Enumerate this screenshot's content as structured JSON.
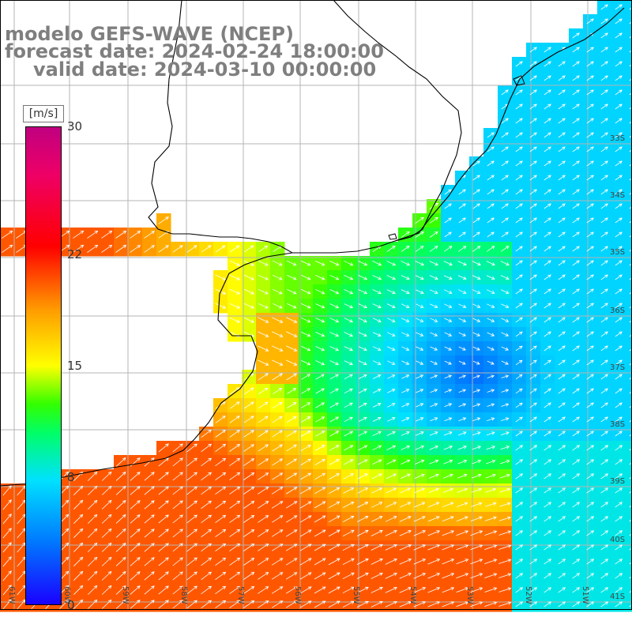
{
  "title": {
    "model": "modelo GEFS-WAVE (NCEP)",
    "forecast": "forecast date: 2024-02-24 18:00:00",
    "valid": "valid date: 2024-03-10 00:00:00"
  },
  "colorbar": {
    "unit": "[m/s]",
    "ticks": [
      "30",
      "22",
      "15",
      "8",
      "0"
    ],
    "tick_values": [
      30,
      22,
      15,
      8,
      0
    ],
    "range": [
      0,
      30
    ]
  },
  "map": {
    "lat_labels": [
      "33S",
      "34S",
      "35S",
      "36S",
      "37S",
      "38S",
      "39S",
      "40S",
      "41S"
    ],
    "lon_labels": [
      "61W",
      "60W",
      "59W",
      "58W",
      "57W",
      "56W",
      "55W",
      "54W",
      "53W",
      "52W",
      "51W"
    ],
    "colors": {
      "land": "#ffffff",
      "grid": "#b4b4b4",
      "coast": "#000000",
      "arrow": "#ffffff"
    }
  }
}
